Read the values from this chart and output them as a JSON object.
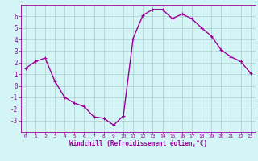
{
  "x": [
    0,
    1,
    2,
    3,
    4,
    5,
    6,
    7,
    8,
    9,
    10,
    11,
    12,
    13,
    14,
    15,
    16,
    17,
    18,
    19,
    20,
    21,
    22,
    23
  ],
  "y": [
    1.5,
    2.1,
    2.4,
    0.4,
    -1.0,
    -1.5,
    -1.8,
    -2.7,
    -2.8,
    -3.4,
    -2.6,
    4.1,
    6.1,
    6.6,
    6.6,
    5.8,
    6.2,
    5.8,
    5.0,
    4.3,
    3.1,
    2.5,
    2.1,
    1.1
  ],
  "line_color": "#990099",
  "marker": "+",
  "bg_color": "#d4f5f5",
  "grid_color": "#aacccc",
  "xlabel": "Windchill (Refroidissement éolien,°C)",
  "xlabel_color": "#990099",
  "tick_color": "#990099",
  "xlim": [
    -0.5,
    23.5
  ],
  "ylim": [
    -4,
    7
  ],
  "yticks": [
    -3,
    -2,
    -1,
    0,
    1,
    2,
    3,
    4,
    5,
    6
  ],
  "xticks": [
    0,
    1,
    2,
    3,
    4,
    5,
    6,
    7,
    8,
    9,
    10,
    11,
    12,
    13,
    14,
    15,
    16,
    17,
    18,
    19,
    20,
    21,
    22,
    23
  ],
  "spine_color": "#990099",
  "linewidth": 1.0,
  "markersize": 3,
  "markeredgewidth": 0.8
}
